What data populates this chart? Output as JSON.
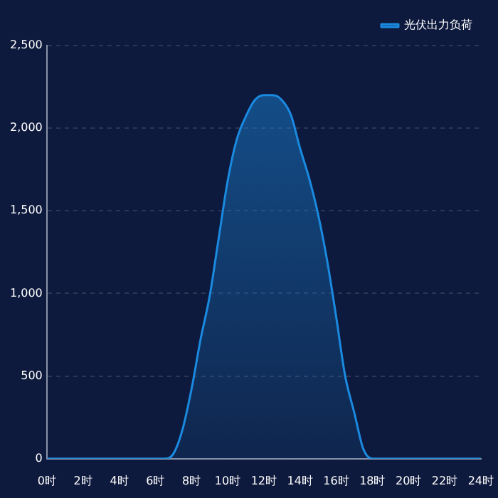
{
  "chart_data": {
    "type": "area",
    "x": [
      0,
      1,
      2,
      3,
      4,
      5,
      6,
      6.5,
      7,
      7.5,
      8,
      8.5,
      9,
      9.5,
      10,
      10.5,
      11,
      11.5,
      12,
      12.5,
      13,
      13.5,
      14,
      14.5,
      15,
      15.5,
      16,
      16.5,
      17,
      17.5,
      18,
      19,
      20,
      21,
      22,
      23,
      24
    ],
    "series": [
      {
        "name": "光伏出力负荷",
        "color": "#1a8ae0",
        "values": [
          0,
          0,
          0,
          0,
          0,
          0,
          0,
          0,
          30,
          175,
          420,
          720,
          980,
          1330,
          1680,
          1930,
          2070,
          2170,
          2200,
          2200,
          2170,
          2080,
          1880,
          1700,
          1480,
          1200,
          860,
          500,
          280,
          60,
          0,
          0,
          0,
          0,
          0,
          0,
          0
        ]
      }
    ],
    "xlim": [
      0,
      24
    ],
    "xticks": [
      {
        "value": 0,
        "label": "0时"
      },
      {
        "value": 2,
        "label": "2时"
      },
      {
        "value": 4,
        "label": "4时"
      },
      {
        "value": 6,
        "label": "6时"
      },
      {
        "value": 8,
        "label": "8时"
      },
      {
        "value": 10,
        "label": "10时"
      },
      {
        "value": 12,
        "label": "12时"
      },
      {
        "value": 14,
        "label": "14时"
      },
      {
        "value": 16,
        "label": "16时"
      },
      {
        "value": 18,
        "label": "18时"
      },
      {
        "value": 20,
        "label": "20时"
      },
      {
        "value": 22,
        "label": "22时"
      },
      {
        "value": 24,
        "label": "24时"
      }
    ],
    "ylim": [
      0,
      2500
    ],
    "yticks": [
      0,
      500,
      {
        "value": 1000,
        "label": "1,000"
      },
      {
        "value": 1500,
        "label": "1,500"
      },
      {
        "value": 2000,
        "label": "2,000"
      },
      {
        "value": 2500,
        "label": "2,500"
      }
    ],
    "grid": "y",
    "legend": "top right",
    "marker": "none"
  }
}
